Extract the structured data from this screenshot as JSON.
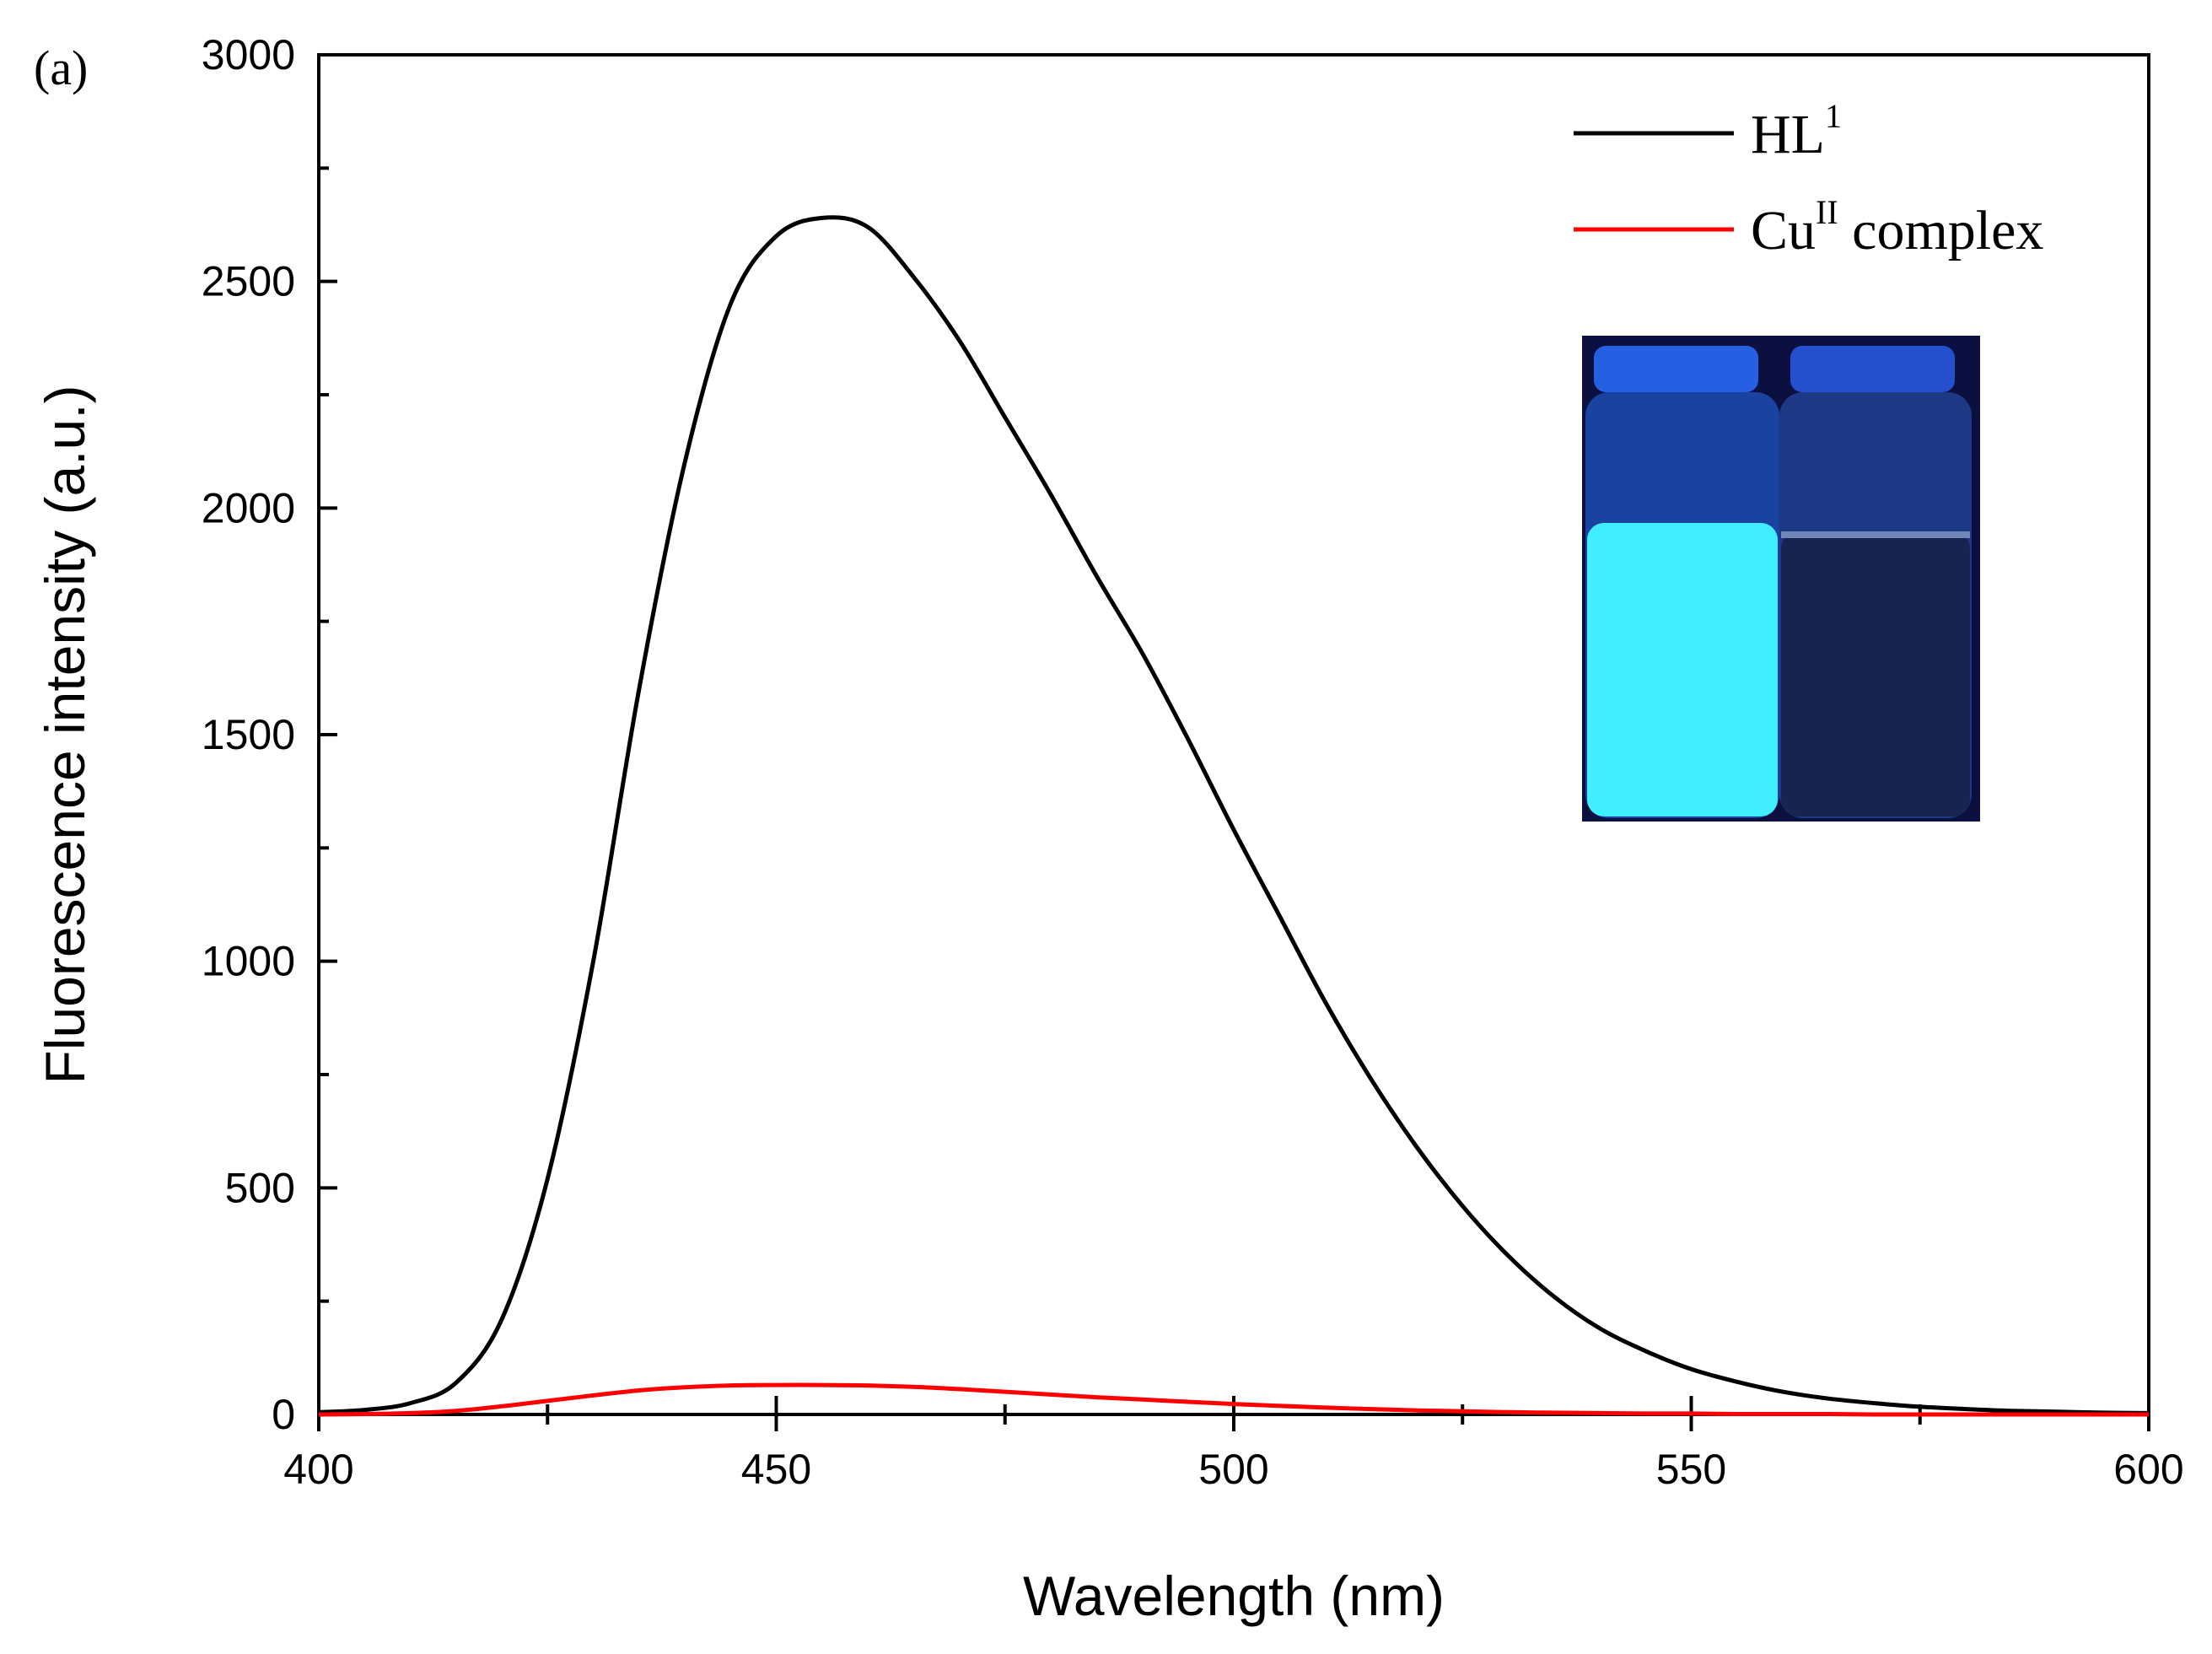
{
  "panel_label": "(a)",
  "chart_data": {
    "type": "line",
    "title": "",
    "xlabel": "Wavelength (nm)",
    "ylabel": "Fluorescence intensity (a.u.)",
    "xlim": [
      400,
      600
    ],
    "ylim": [
      0,
      3000
    ],
    "x_ticks": [
      400,
      450,
      500,
      550,
      600
    ],
    "y_ticks": [
      0,
      500,
      1000,
      1500,
      2000,
      2500,
      3000
    ],
    "x": [
      400,
      405,
      410,
      415,
      420,
      425,
      430,
      435,
      440,
      445,
      450,
      455,
      460,
      465,
      470,
      475,
      480,
      485,
      490,
      495,
      500,
      505,
      510,
      515,
      520,
      525,
      530,
      535,
      540,
      545,
      550,
      555,
      560,
      565,
      570,
      575,
      580,
      585,
      590,
      595,
      600
    ],
    "series": [
      {
        "name": "HL",
        "name_sup": "1",
        "color": "#000000",
        "values": [
          5,
          10,
          25,
          70,
          210,
          520,
          1000,
          1600,
          2100,
          2450,
          2600,
          2640,
          2620,
          2510,
          2370,
          2200,
          2030,
          1850,
          1680,
          1490,
          1290,
          1100,
          910,
          740,
          590,
          460,
          350,
          260,
          190,
          140,
          100,
          72,
          50,
          35,
          25,
          17,
          12,
          8,
          6,
          4,
          3
        ]
      },
      {
        "name": "Cu",
        "name_sup": "II",
        "name_suffix": " complex",
        "color": "#ff0000",
        "values": [
          0,
          1,
          3,
          8,
          18,
          30,
          42,
          53,
          60,
          64,
          65,
          65,
          64,
          61,
          56,
          50,
          44,
          38,
          33,
          28,
          23,
          19,
          15,
          12,
          9,
          7,
          5,
          4,
          3,
          2,
          2,
          1,
          1,
          1,
          0,
          0,
          0,
          0,
          0,
          0,
          0
        ]
      }
    ],
    "legend_position": "top-right"
  },
  "inset": {
    "description": "two vials under UV light",
    "colors": {
      "background": "#0a0f3a",
      "left_glow": "#3ff0ff",
      "right_liquid": "#1c2a55"
    }
  }
}
